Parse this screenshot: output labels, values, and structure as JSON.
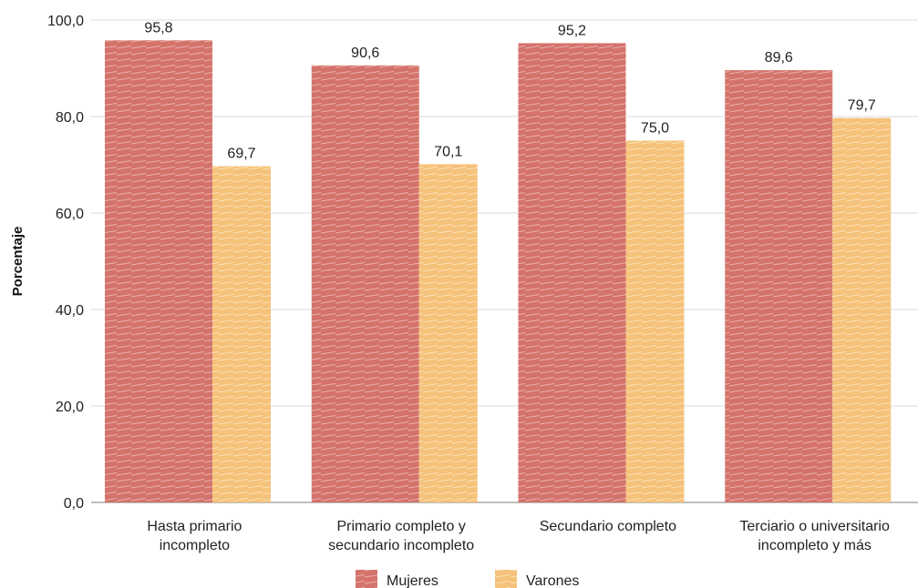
{
  "chart_data": {
    "type": "bar",
    "categories": [
      [
        "Hasta primario",
        "incompleto"
      ],
      [
        "Primario completo y",
        "secundario incompleto"
      ],
      [
        "Secundario completo"
      ],
      [
        "Terciario o universitario",
        "incompleto y más"
      ]
    ],
    "series": [
      {
        "name": "Mujeres",
        "values": [
          95.8,
          90.6,
          95.2,
          89.6
        ],
        "labels": [
          "95,8",
          "90,6",
          "95,2",
          "89,6"
        ],
        "color": "#d4736b"
      },
      {
        "name": "Varones",
        "values": [
          69.7,
          70.1,
          75.0,
          79.7
        ],
        "labels": [
          "69,7",
          "70,1",
          "75,0",
          "79,7"
        ],
        "color": "#f5c27a"
      }
    ],
    "ylabel": "Porcentaje",
    "xlabel": "",
    "ylim": [
      0,
      100
    ],
    "yticks": [
      "0,0",
      "20,0",
      "40,0",
      "60,0",
      "80,0",
      "100,0"
    ],
    "grid": true,
    "legend_position": "bottom"
  }
}
